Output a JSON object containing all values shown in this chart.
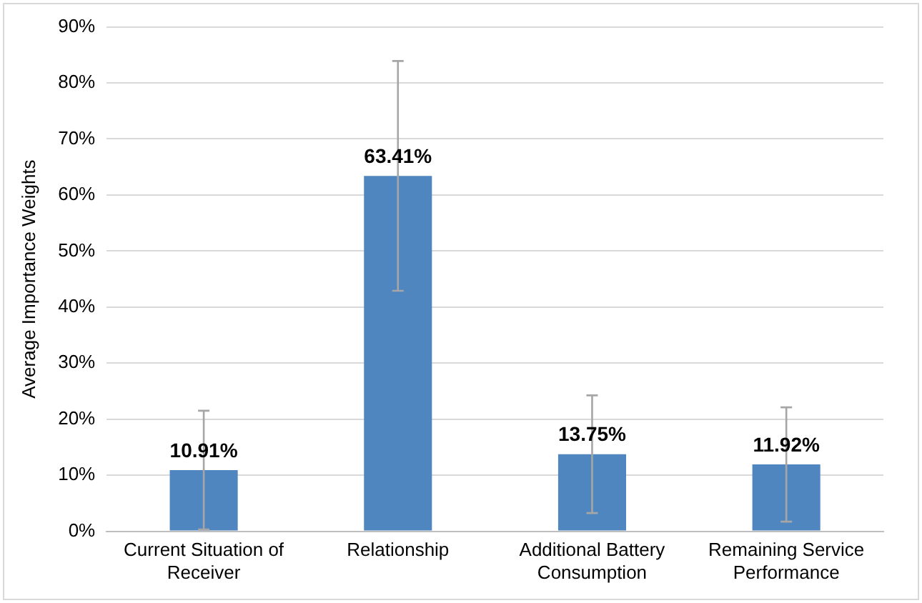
{
  "chart_data": {
    "type": "bar",
    "ylabel": "Average Importance Weights",
    "categories": [
      "Current Situation of Receiver",
      "Relationship",
      "Additional Battery Consumption",
      "Remaining Service Performance"
    ],
    "values": [
      10.91,
      63.41,
      13.75,
      11.92
    ],
    "value_labels": [
      "10.91%",
      "63.41%",
      "13.75%",
      "11.92%"
    ],
    "errors": [
      10.6,
      20.5,
      10.5,
      10.2
    ],
    "color": "#4f86c0",
    "ylim": [
      0,
      90
    ],
    "yticks": [
      {
        "value": 0,
        "label": "0%"
      },
      {
        "value": 10,
        "label": "10%"
      },
      {
        "value": 20,
        "label": "20%"
      },
      {
        "value": 30,
        "label": "30%"
      },
      {
        "value": 40,
        "label": "40%"
      },
      {
        "value": 50,
        "label": "50%"
      },
      {
        "value": 60,
        "label": "60%"
      },
      {
        "value": 70,
        "label": "70%"
      },
      {
        "value": 80,
        "label": "80%"
      },
      {
        "value": 90,
        "label": "90%"
      }
    ],
    "grid": "y"
  }
}
